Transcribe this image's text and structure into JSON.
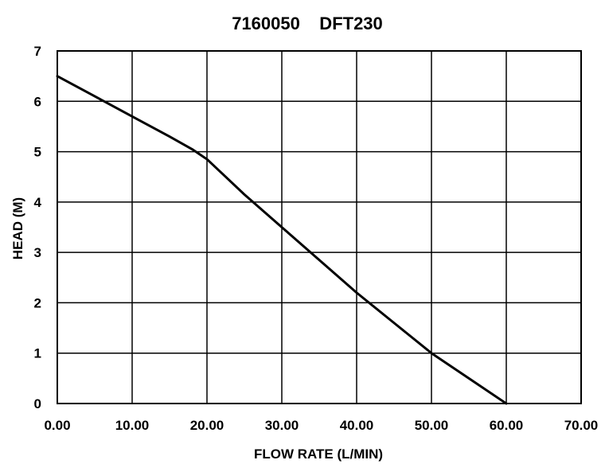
{
  "chart_data": {
    "type": "line",
    "title": "7160050    DFT230",
    "xlabel": "FLOW RATE (L/MIN)",
    "ylabel": "HEAD (M)",
    "xlim": [
      0,
      70
    ],
    "ylim": [
      0,
      7
    ],
    "grid": true,
    "x_ticks": [
      "0.00",
      "10.00",
      "20.00",
      "30.00",
      "40.00",
      "50.00",
      "60.00",
      "70.00"
    ],
    "y_ticks": [
      "0",
      "1",
      "2",
      "3",
      "4",
      "5",
      "6",
      "7"
    ],
    "series": [
      {
        "color": "#000000",
        "points": [
          {
            "x": 0,
            "y": 6.5
          },
          {
            "x": 5,
            "y": 6.1
          },
          {
            "x": 10,
            "y": 5.7
          },
          {
            "x": 15,
            "y": 5.3
          },
          {
            "x": 18,
            "y": 5.05
          },
          {
            "x": 20,
            "y": 4.85
          },
          {
            "x": 22.5,
            "y": 4.5
          },
          {
            "x": 25,
            "y": 4.15
          },
          {
            "x": 30,
            "y": 3.5
          },
          {
            "x": 35,
            "y": 2.85
          },
          {
            "x": 40,
            "y": 2.2
          },
          {
            "x": 45,
            "y": 1.6
          },
          {
            "x": 50,
            "y": 1.0
          },
          {
            "x": 55,
            "y": 0.5
          },
          {
            "x": 60,
            "y": 0
          }
        ]
      }
    ]
  }
}
